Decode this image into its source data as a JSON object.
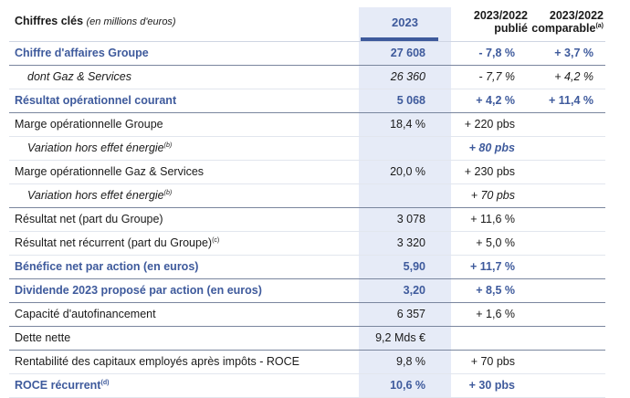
{
  "header": {
    "title": "Chiffres clés",
    "subtitle": "(en millions d'euros)",
    "col_2023": "2023",
    "col_published_l1": "2023/2022",
    "col_published_l2": "publié",
    "col_comparable_l1": "2023/2022",
    "col_comparable_l2": "comparable",
    "col_comparable_note": "(a)"
  },
  "rows": [
    {
      "label": "Chiffre d'affaires Groupe",
      "note": "",
      "v2023": "27 608",
      "published": "- 7,8 %",
      "comparable": "+ 3,7 %"
    },
    {
      "label": "dont Gaz & Services",
      "note": "",
      "v2023": "26 360",
      "published": "- 7,7 %",
      "comparable": "+ 4,2 %"
    },
    {
      "label": "Résultat opérationnel courant",
      "note": "",
      "v2023": "5 068",
      "published": "+ 4,2 %",
      "comparable": "+ 11,4 %"
    },
    {
      "label": "Marge opérationnelle Groupe",
      "note": "",
      "v2023": "18,4 %",
      "published": "+ 220 pbs",
      "comparable": ""
    },
    {
      "label": "Variation hors effet énergie",
      "note": "(b)",
      "v2023": "",
      "published": "+ 80 pbs",
      "comparable": ""
    },
    {
      "label": "Marge opérationnelle Gaz & Services",
      "note": "",
      "v2023": "20,0 %",
      "published": "+ 230 pbs",
      "comparable": ""
    },
    {
      "label": "Variation hors effet énergie",
      "note": "(b)",
      "v2023": "",
      "published": "+ 70 pbs",
      "comparable": ""
    },
    {
      "label": "Résultat net (part du Groupe)",
      "note": "",
      "v2023": "3 078",
      "published": "+ 11,6 %",
      "comparable": ""
    },
    {
      "label": "Résultat net récurrent (part du Groupe)",
      "note": "(c)",
      "v2023": "3 320",
      "published": "+ 5,0 %",
      "comparable": ""
    },
    {
      "label": "Bénéfice net par action (en euros)",
      "note": "",
      "v2023": "5,90",
      "published": "+ 11,7 %",
      "comparable": ""
    },
    {
      "label": "Dividende 2023 proposé par action (en euros)",
      "note": "",
      "v2023": "3,20",
      "published": "+ 8,5 %",
      "comparable": ""
    },
    {
      "label": "Capacité d'autofinancement",
      "note": "",
      "v2023": "6 357",
      "published": "+ 1,6 %",
      "comparable": ""
    },
    {
      "label": "Dette nette",
      "note": "",
      "v2023": "9,2 Mds €",
      "published": "",
      "comparable": ""
    },
    {
      "label": "Rentabilité des capitaux employés après impôts - ROCE",
      "note": "",
      "v2023": "9,8 %",
      "published": "+ 70 pbs",
      "comparable": ""
    },
    {
      "label": "ROCE récurrent",
      "note": "(d)",
      "v2023": "10,6 %",
      "published": "+ 30 pbs",
      "comparable": ""
    }
  ],
  "colors": {
    "accent": "#3e5a9c",
    "highlight": "#e6ebf7"
  }
}
